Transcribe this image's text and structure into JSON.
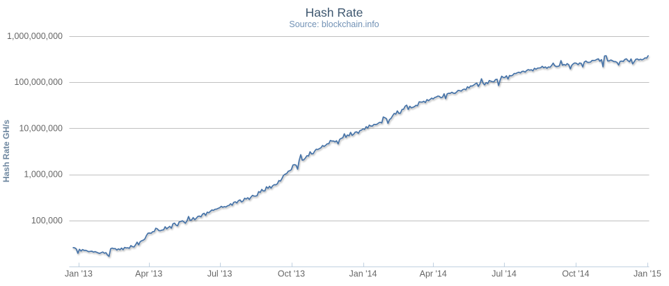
{
  "chart_data": {
    "type": "line",
    "title": "Hash Rate",
    "subtitle": "Source: blockchain.info",
    "xlabel": "",
    "ylabel": "Hash Rate GH/s",
    "y_scale": "log",
    "ylim": [
      10000,
      1000000000
    ],
    "x_range": [
      "2012-12-25",
      "2015-01-01"
    ],
    "grid": "horizontal-major-only",
    "legend": "none",
    "y_ticks": [
      {
        "label": "100,000",
        "value": 100000
      },
      {
        "label": "1,000,000",
        "value": 1000000
      },
      {
        "label": "10,000,000",
        "value": 10000000
      },
      {
        "label": "100,000,000",
        "value": 100000000
      },
      {
        "label": "1,000,000,000",
        "value": 1000000000
      }
    ],
    "x_ticks": [
      {
        "label": "Jan '13",
        "date": "2013-01-01"
      },
      {
        "label": "Apr '13",
        "date": "2013-04-01"
      },
      {
        "label": "Jul '13",
        "date": "2013-07-01"
      },
      {
        "label": "Oct '13",
        "date": "2013-10-01"
      },
      {
        "label": "Jan '14",
        "date": "2014-01-01"
      },
      {
        "label": "Apr '14",
        "date": "2014-04-01"
      },
      {
        "label": "Jul '14",
        "date": "2014-07-01"
      },
      {
        "label": "Oct '14",
        "date": "2014-10-01"
      },
      {
        "label": "Jan '15",
        "date": "2015-01-01"
      }
    ],
    "series": [
      {
        "name": "Hash Rate",
        "unit": "GH/s",
        "color": "#4572A7",
        "points": [
          {
            "date": "2012-12-25",
            "value_ghs": 26000
          },
          {
            "date": "2013-01-01",
            "value_ghs": 23500
          },
          {
            "date": "2013-01-20",
            "value_ghs": 20500
          },
          {
            "date": "2013-02-10",
            "value_ghs": 21500
          },
          {
            "date": "2013-03-01",
            "value_ghs": 25500
          },
          {
            "date": "2013-03-20",
            "value_ghs": 33000
          },
          {
            "date": "2013-04-01",
            "value_ghs": 52000
          },
          {
            "date": "2013-04-15",
            "value_ghs": 62000
          },
          {
            "date": "2013-05-01",
            "value_ghs": 72000
          },
          {
            "date": "2013-06-01",
            "value_ghs": 110000
          },
          {
            "date": "2013-07-01",
            "value_ghs": 190000
          },
          {
            "date": "2013-08-01",
            "value_ghs": 280000
          },
          {
            "date": "2013-09-01",
            "value_ghs": 480000
          },
          {
            "date": "2013-09-15",
            "value_ghs": 700000
          },
          {
            "date": "2013-10-01",
            "value_ghs": 1300000
          },
          {
            "date": "2013-10-15",
            "value_ghs": 2000000
          },
          {
            "date": "2013-11-01",
            "value_ghs": 3300000
          },
          {
            "date": "2013-11-15",
            "value_ghs": 4600000
          },
          {
            "date": "2013-12-01",
            "value_ghs": 5800000
          },
          {
            "date": "2014-01-01",
            "value_ghs": 9500000
          },
          {
            "date": "2014-02-01",
            "value_ghs": 17000000
          },
          {
            "date": "2014-03-01",
            "value_ghs": 28000000
          },
          {
            "date": "2014-04-01",
            "value_ghs": 47000000
          },
          {
            "date": "2014-05-01",
            "value_ghs": 63000000
          },
          {
            "date": "2014-06-01",
            "value_ghs": 90000000
          },
          {
            "date": "2014-07-01",
            "value_ghs": 125000000
          },
          {
            "date": "2014-08-01",
            "value_ghs": 175000000
          },
          {
            "date": "2014-09-01",
            "value_ghs": 245000000
          },
          {
            "date": "2014-10-01",
            "value_ghs": 265000000
          },
          {
            "date": "2014-11-01",
            "value_ghs": 285000000
          },
          {
            "date": "2014-12-01",
            "value_ghs": 300000000
          },
          {
            "date": "2015-01-01",
            "value_ghs": 320000000
          }
        ]
      }
    ]
  },
  "colors": {
    "series_line": "#4572A7",
    "title": "#3E576F",
    "subtitle": "#7191B5",
    "y_axis_title": "#6D869F",
    "tick_label": "#666666",
    "gridline": "#C0C0C0",
    "axis_line": "#C0D0E0",
    "background": "#FFFFFF"
  }
}
